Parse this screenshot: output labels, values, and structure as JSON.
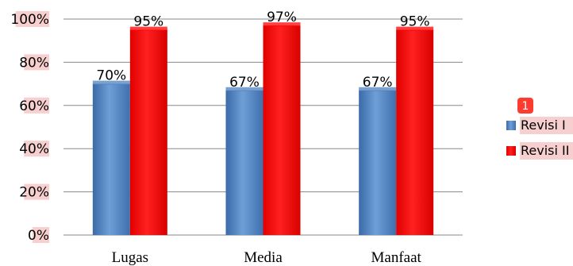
{
  "chart_data": {
    "type": "bar",
    "categories": [
      "Lugas",
      "Media",
      "Manfaat"
    ],
    "series": [
      {
        "name": "Revisi I",
        "values": [
          70,
          67,
          67
        ],
        "labels": [
          "70%",
          "67%",
          "67%"
        ],
        "color": "#4f81bd"
      },
      {
        "name": "Revisi II",
        "values": [
          95,
          97,
          95
        ],
        "labels": [
          "95%",
          "97%",
          "95%"
        ],
        "color": "#ff0000"
      }
    ],
    "y_ticks": [
      "0%",
      "20%",
      "40%",
      "60%",
      "80%",
      "100%"
    ],
    "ylim": [
      0,
      100
    ],
    "grid": true,
    "legend_position": "right",
    "legend_badge": "1",
    "title": "",
    "xlabel": "",
    "ylabel": ""
  },
  "colors": {
    "gridline": "#888888",
    "tick_label_highlight": "#f7cfcf",
    "badge": "#ff3b30"
  }
}
